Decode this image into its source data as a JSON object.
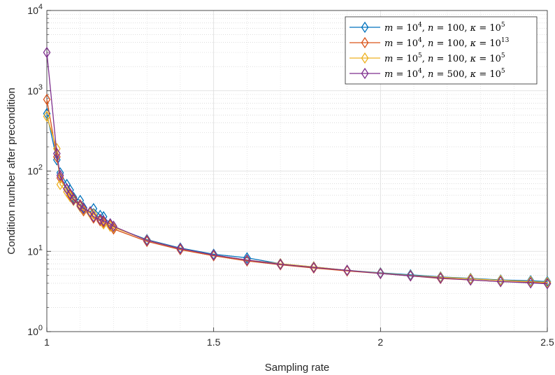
{
  "chart_data": {
    "type": "line",
    "title": "",
    "xlabel": "Sampling rate",
    "ylabel": "Condition number after precondition",
    "xlim": [
      1,
      2.5
    ],
    "ylim": [
      1,
      10000
    ],
    "yscale": "log",
    "grid": true,
    "minor_grid": true,
    "legend_position": "top-right",
    "x_ticks": [
      {
        "value": 1,
        "label": "1"
      },
      {
        "value": 1.5,
        "label": "1.5"
      },
      {
        "value": 2,
        "label": "2"
      },
      {
        "value": 2.5,
        "label": "2.5"
      }
    ],
    "y_ticks": [
      {
        "value": 1,
        "base": "10",
        "exp": "0"
      },
      {
        "value": 10,
        "base": "10",
        "exp": "1"
      },
      {
        "value": 100,
        "base": "10",
        "exp": "2"
      },
      {
        "value": 1000,
        "base": "10",
        "exp": "3"
      },
      {
        "value": 10000,
        "base": "10",
        "exp": "4"
      }
    ],
    "series": [
      {
        "name": "m = 10^4, n = 100, κ = 10^5",
        "legend": [
          {
            "t": "m",
            "i": true
          },
          {
            "t": " = 10"
          },
          {
            "t": "4",
            "sup": true
          },
          {
            "t": ", "
          },
          {
            "t": "n",
            "i": true
          },
          {
            "t": " = 100, "
          },
          {
            "t": "κ",
            "i": true
          },
          {
            "t": " = 10"
          },
          {
            "t": "5",
            "sup": true
          }
        ],
        "color": "#0072BD",
        "x": [
          1.0,
          1.03,
          1.04,
          1.06,
          1.07,
          1.08,
          1.1,
          1.11,
          1.13,
          1.14,
          1.16,
          1.17,
          1.19,
          1.2,
          1.3,
          1.4,
          1.5,
          1.6,
          1.7,
          1.8,
          1.9,
          2.0,
          2.09,
          2.18,
          2.27,
          2.36,
          2.45,
          2.5
        ],
        "y": [
          520,
          138,
          95,
          68,
          58,
          47,
          43,
          35,
          31,
          34,
          28,
          27,
          22,
          20,
          14,
          11,
          9.2,
          8.3,
          7,
          6.4,
          5.8,
          5.4,
          5.1,
          4.8,
          4.6,
          4.4,
          4.3,
          4.2
        ]
      },
      {
        "name": "m = 10^4, n = 100, κ = 10^13",
        "legend": [
          {
            "t": "m",
            "i": true
          },
          {
            "t": " = 10"
          },
          {
            "t": "4",
            "sup": true
          },
          {
            "t": ", "
          },
          {
            "t": "n",
            "i": true
          },
          {
            "t": " = 100, "
          },
          {
            "t": "κ",
            "i": true
          },
          {
            "t": " = 10"
          },
          {
            "t": "13",
            "sup": true
          }
        ],
        "color": "#D95319",
        "x": [
          1.0,
          1.03,
          1.04,
          1.06,
          1.07,
          1.08,
          1.1,
          1.11,
          1.13,
          1.14,
          1.16,
          1.17,
          1.19,
          1.2,
          1.3,
          1.4,
          1.5,
          1.6,
          1.7,
          1.8,
          1.9,
          2.0,
          2.09,
          2.18,
          2.27,
          2.36,
          2.45,
          2.5
        ],
        "y": [
          780,
          150,
          82,
          60,
          50,
          45,
          38,
          32,
          30,
          26,
          24,
          23,
          21,
          19,
          13.3,
          10.5,
          8.8,
          7.6,
          6.8,
          6.2,
          5.7,
          5.3,
          4.95,
          4.6,
          4.4,
          4.2,
          4.1,
          4.0
        ]
      },
      {
        "name": "m = 10^5, n = 100, κ = 10^5",
        "legend": [
          {
            "t": "m",
            "i": true
          },
          {
            "t": " = 10"
          },
          {
            "t": "5",
            "sup": true
          },
          {
            "t": ", "
          },
          {
            "t": "n",
            "i": true
          },
          {
            "t": " = 100, "
          },
          {
            "t": "κ",
            "i": true
          },
          {
            "t": " = 10"
          },
          {
            "t": "5",
            "sup": true
          }
        ],
        "color": "#EDB120",
        "x": [
          1.0,
          1.03,
          1.04,
          1.06,
          1.07,
          1.08,
          1.1,
          1.11,
          1.13,
          1.14,
          1.16,
          1.17,
          1.19,
          1.2,
          1.3,
          1.4,
          1.5,
          1.6,
          1.7,
          1.8,
          1.9,
          2.0,
          2.09,
          2.18,
          2.27,
          2.36,
          2.45,
          2.5
        ],
        "y": [
          480,
          190,
          68,
          55,
          48,
          43,
          36,
          33,
          30,
          29,
          25,
          22,
          20.5,
          20,
          13.8,
          10.8,
          9.0,
          7.8,
          7.0,
          6.4,
          5.8,
          5.35,
          5.0,
          4.75,
          4.55,
          4.35,
          4.2,
          4.1
        ]
      },
      {
        "name": "m = 10^4, n = 500, κ = 10^5",
        "legend": [
          {
            "t": "m",
            "i": true
          },
          {
            "t": " = 10"
          },
          {
            "t": "4",
            "sup": true
          },
          {
            "t": ", "
          },
          {
            "t": "n",
            "i": true
          },
          {
            "t": " = 500, "
          },
          {
            "t": "κ",
            "i": true
          },
          {
            "t": " = 10"
          },
          {
            "t": "5",
            "sup": true
          }
        ],
        "color": "#7E2F8E",
        "x": [
          1.0,
          1.03,
          1.04,
          1.06,
          1.07,
          1.08,
          1.1,
          1.11,
          1.13,
          1.14,
          1.16,
          1.17,
          1.19,
          1.2,
          1.3,
          1.4,
          1.5,
          1.6,
          1.7,
          1.8,
          1.9,
          2.0,
          2.09,
          2.18,
          2.27,
          2.36,
          2.45,
          2.5
        ],
        "y": [
          3000,
          165,
          88,
          60,
          52,
          44,
          37,
          34,
          31,
          27,
          25,
          24,
          22,
          20.5,
          13.7,
          10.8,
          9.0,
          7.8,
          6.9,
          6.3,
          5.8,
          5.3,
          4.95,
          4.65,
          4.4,
          4.2,
          4.05,
          3.95
        ]
      }
    ]
  }
}
